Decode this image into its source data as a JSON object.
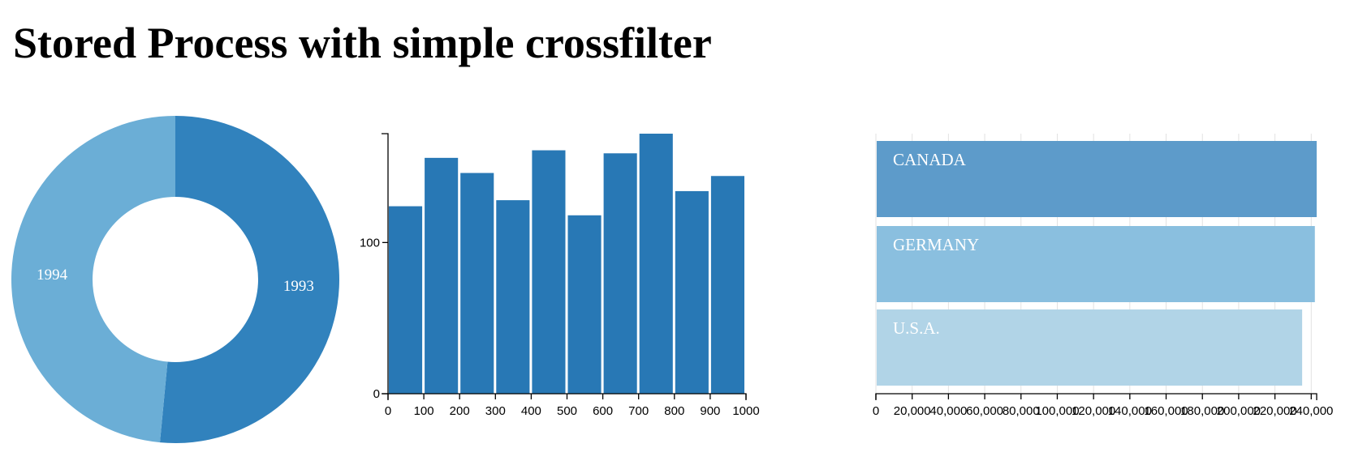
{
  "page": {
    "title": "Stored Process with simple crossfilter"
  },
  "colors": {
    "pie_1993": "#3182bd",
    "pie_1994": "#6baed6",
    "bar": "#2878b5",
    "row_canada": "#5d9bca",
    "row_germany": "#8abfdf",
    "row_usa": "#b1d4e7"
  },
  "chart_data": [
    {
      "type": "pie",
      "subtype": "donut",
      "labels": [
        "1993",
        "1994"
      ],
      "values": [
        51.5,
        48.5
      ]
    },
    {
      "type": "bar",
      "x_bins": [
        0,
        100,
        200,
        300,
        400,
        500,
        600,
        700,
        800,
        900
      ],
      "bin_width": 100,
      "values": [
        124,
        156,
        146,
        128,
        161,
        118,
        159,
        172,
        134,
        144
      ],
      "xlim": [
        0,
        1000
      ],
      "ylim": [
        0,
        172
      ],
      "x_ticks": [
        "0",
        "100",
        "200",
        "300",
        "400",
        "500",
        "600",
        "700",
        "800",
        "900",
        "1000"
      ],
      "y_ticks": [
        "0",
        "100"
      ],
      "y_tick_values": [
        0,
        100
      ]
    },
    {
      "type": "bar",
      "orientation": "horizontal",
      "categories": [
        "CANADA",
        "GERMANY",
        "U.S.A."
      ],
      "values": [
        243000,
        242000,
        235000
      ],
      "xlim": [
        0,
        243000
      ],
      "x_ticks": [
        "0",
        "20,000",
        "40,000",
        "60,000",
        "80,000",
        "100,000",
        "120,000",
        "140,000",
        "160,000",
        "180,000",
        "200,000",
        "220,000",
        "240,000"
      ],
      "x_tick_values": [
        0,
        20000,
        40000,
        60000,
        80000,
        100000,
        120000,
        140000,
        160000,
        180000,
        200000,
        220000,
        240000
      ],
      "grid": true
    }
  ]
}
